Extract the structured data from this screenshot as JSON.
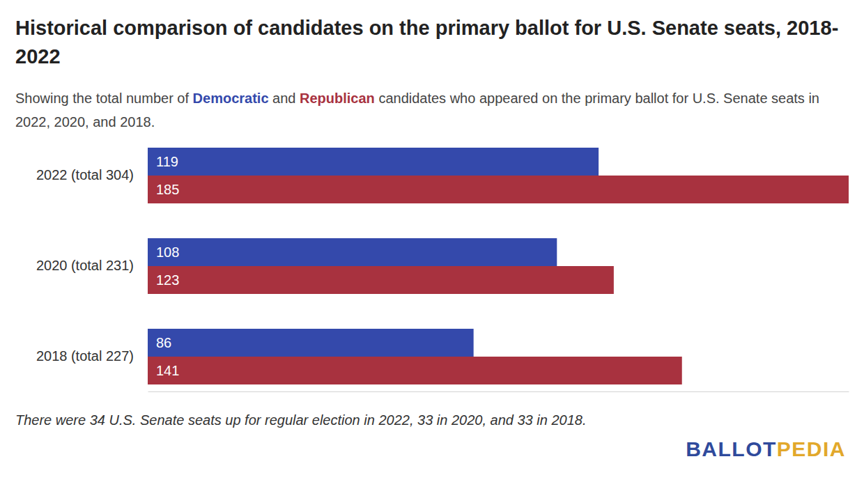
{
  "chart_data": {
    "type": "bar",
    "orientation": "horizontal",
    "title": "Historical comparison of candidates on the primary ballot for U.S. Senate seats, 2018-2022",
    "subtitle": "Showing the total number of Democratic and Republican candidates who appeared on the primary ballot for U.S. Senate seats in 2022, 2020, and 2018.",
    "categories": [
      "2022 (total 304)",
      "2020 (total 231)",
      "2018 (total 227)"
    ],
    "series": [
      {
        "name": "Democratic",
        "color": "#3449ab",
        "values": [
          119,
          108,
          86
        ]
      },
      {
        "name": "Republican",
        "color": "#a8323f",
        "values": [
          185,
          123,
          141
        ]
      }
    ],
    "xlim": [
      0,
      185
    ],
    "data_labels": true,
    "tick_labels": "y",
    "grid": false,
    "note": "There were 34 U.S. Senate seats up for regular election in 2022, 33 in 2020, and 33 in 2018.",
    "source": [
      "BALLOT",
      "PEDIA"
    ]
  }
}
